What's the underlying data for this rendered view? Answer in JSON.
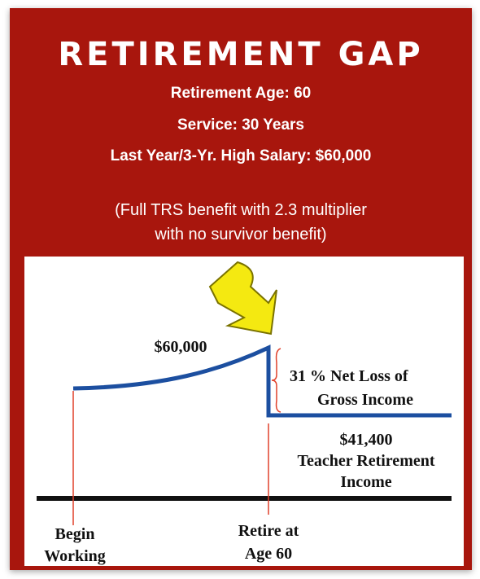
{
  "header": {
    "title": "RETIREMENT GAP",
    "details": [
      "Retirement Age: 60",
      "Service: 30 Years",
      "Last Year/3-Yr. High Salary: $60,000"
    ],
    "note": [
      "(Full TRS benefit with 2.3 multiplier",
      "with no survivor benefit)"
    ]
  },
  "diagram": {
    "salary_label": "$60,000",
    "loss_label": [
      "31 % Net Loss of",
      "Gross Income"
    ],
    "pension_label": [
      "$41,400",
      "Teacher Retirement",
      "Income"
    ],
    "start_label": [
      "Begin",
      "Working"
    ],
    "retire_label": [
      "Retire at",
      "Age 60"
    ]
  }
}
